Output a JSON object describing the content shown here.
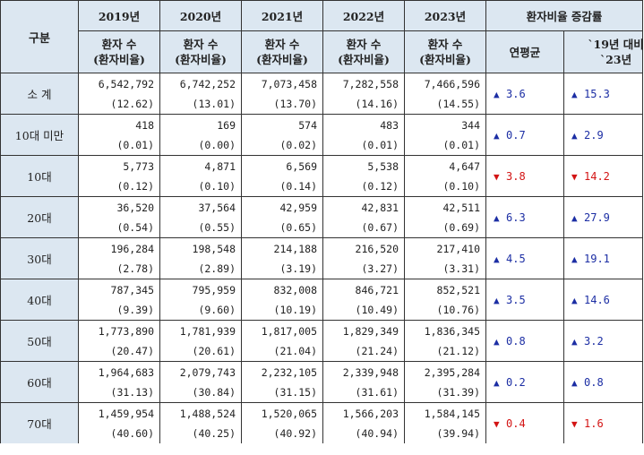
{
  "header": {
    "category": "구분",
    "years": [
      "2019년",
      "2020년",
      "2021년",
      "2022년",
      "2023년"
    ],
    "patients_label": "환자 수",
    "ratio_label": "(환자비율)",
    "change_group": "환자비율 증감률",
    "annual_avg": "연평균",
    "vs_line1": "`19년 대비",
    "vs_line2": "`23년"
  },
  "rows": [
    {
      "label": "소 계",
      "values": [
        {
          "v": "6,542,792",
          "p": "(12.62)"
        },
        {
          "v": "6,742,252",
          "p": "(13.01)"
        },
        {
          "v": "7,073,458",
          "p": "(13.70)"
        },
        {
          "v": "7,282,558",
          "p": "(14.16)"
        },
        {
          "v": "7,466,596",
          "p": "(14.55)"
        }
      ],
      "annual": {
        "dir": "up",
        "val": "3.6"
      },
      "vs": {
        "dir": "up",
        "val": "15.3"
      }
    },
    {
      "label": "10대 미만",
      "values": [
        {
          "v": "418",
          "p": "(0.01)"
        },
        {
          "v": "169",
          "p": "(0.00)"
        },
        {
          "v": "574",
          "p": "(0.02)"
        },
        {
          "v": "483",
          "p": "(0.01)"
        },
        {
          "v": "344",
          "p": "(0.01)"
        }
      ],
      "annual": {
        "dir": "up",
        "val": "0.7"
      },
      "vs": {
        "dir": "up",
        "val": "2.9"
      }
    },
    {
      "label": "10대",
      "values": [
        {
          "v": "5,773",
          "p": "(0.12)"
        },
        {
          "v": "4,871",
          "p": "(0.10)"
        },
        {
          "v": "6,569",
          "p": "(0.14)"
        },
        {
          "v": "5,538",
          "p": "(0.12)"
        },
        {
          "v": "4,647",
          "p": "(0.10)"
        }
      ],
      "annual": {
        "dir": "down",
        "val": "3.8"
      },
      "vs": {
        "dir": "down",
        "val": "14.2"
      }
    },
    {
      "label": "20대",
      "values": [
        {
          "v": "36,520",
          "p": "(0.54)"
        },
        {
          "v": "37,564",
          "p": "(0.55)"
        },
        {
          "v": "42,959",
          "p": "(0.65)"
        },
        {
          "v": "42,831",
          "p": "(0.67)"
        },
        {
          "v": "42,511",
          "p": "(0.69)"
        }
      ],
      "annual": {
        "dir": "up",
        "val": "6.3"
      },
      "vs": {
        "dir": "up",
        "val": "27.9"
      }
    },
    {
      "label": "30대",
      "values": [
        {
          "v": "196,284",
          "p": "(2.78)"
        },
        {
          "v": "198,548",
          "p": "(2.89)"
        },
        {
          "v": "214,188",
          "p": "(3.19)"
        },
        {
          "v": "216,520",
          "p": "(3.27)"
        },
        {
          "v": "217,410",
          "p": "(3.31)"
        }
      ],
      "annual": {
        "dir": "up",
        "val": "4.5"
      },
      "vs": {
        "dir": "up",
        "val": "19.1"
      }
    },
    {
      "label": "40대",
      "values": [
        {
          "v": "787,345",
          "p": "(9.39)"
        },
        {
          "v": "795,959",
          "p": "(9.60)"
        },
        {
          "v": "832,008",
          "p": "(10.19)"
        },
        {
          "v": "846,721",
          "p": "(10.49)"
        },
        {
          "v": "852,521",
          "p": "(10.76)"
        }
      ],
      "annual": {
        "dir": "up",
        "val": "3.5"
      },
      "vs": {
        "dir": "up",
        "val": "14.6"
      }
    },
    {
      "label": "50대",
      "values": [
        {
          "v": "1,773,890",
          "p": "(20.47)"
        },
        {
          "v": "1,781,939",
          "p": "(20.61)"
        },
        {
          "v": "1,817,005",
          "p": "(21.04)"
        },
        {
          "v": "1,829,349",
          "p": "(21.24)"
        },
        {
          "v": "1,836,345",
          "p": "(21.12)"
        }
      ],
      "annual": {
        "dir": "up",
        "val": "0.8"
      },
      "vs": {
        "dir": "up",
        "val": "3.2"
      }
    },
    {
      "label": "60대",
      "values": [
        {
          "v": "1,964,683",
          "p": "(31.13)"
        },
        {
          "v": "2,079,743",
          "p": "(30.84)"
        },
        {
          "v": "2,232,105",
          "p": "(31.15)"
        },
        {
          "v": "2,339,948",
          "p": "(31.61)"
        },
        {
          "v": "2,395,284",
          "p": "(31.39)"
        }
      ],
      "annual": {
        "dir": "up",
        "val": "0.2"
      },
      "vs": {
        "dir": "up",
        "val": "0.8"
      }
    },
    {
      "label": "70대",
      "values": [
        {
          "v": "1,459,954",
          "p": "(40.60)"
        },
        {
          "v": "1,488,524",
          "p": "(40.25)"
        },
        {
          "v": "1,520,065",
          "p": "(40.92)"
        },
        {
          "v": "1,566,203",
          "p": "(40.94)"
        },
        {
          "v": "1,584,145",
          "p": "(39.94)"
        }
      ],
      "annual": {
        "dir": "down",
        "val": "0.4"
      },
      "vs": {
        "dir": "down",
        "val": "1.6"
      }
    }
  ],
  "symbols": {
    "up": "▲",
    "down": "▼"
  },
  "colors": {
    "header_bg": "#dce7f1",
    "up": "#1c2ea4",
    "down": "#d31414",
    "border": "#333333"
  }
}
